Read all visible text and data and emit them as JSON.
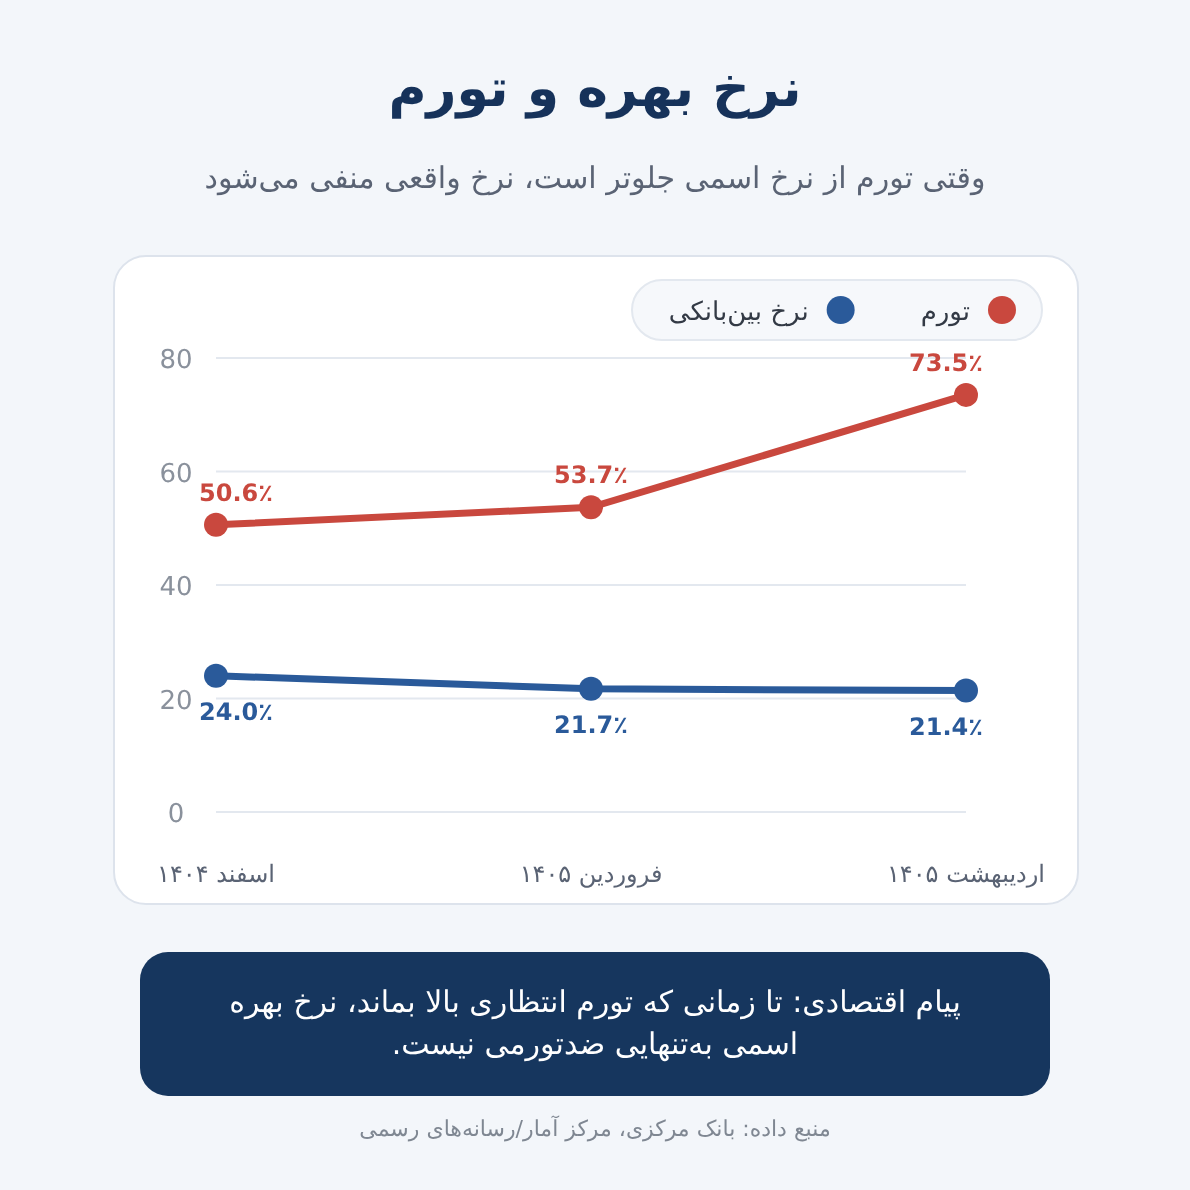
{
  "chart_data": {
    "type": "line",
    "title": "نرخ بهره و تورم",
    "subtitle": "وقتی تورم از نرخ اسمی جلوتر است، نرخ واقعی منفی می‌شود",
    "categories": [
      "اسفند ۱۴۰۴",
      "فروردین ۱۴۰۵",
      "اردیبهشت ۱۴۰۵"
    ],
    "series": [
      {
        "name": "تورم",
        "color": "#c9483e",
        "values": [
          50.6,
          53.7,
          73.5
        ],
        "value_labels": [
          "50.6٪",
          "53.7٪",
          "73.5٪"
        ]
      },
      {
        "name": "نرخ بین‌بانکی",
        "color": "#2a5a9a",
        "values": [
          24.0,
          21.7,
          21.4
        ],
        "value_labels": [
          "24.0٪",
          "21.7٪",
          "21.4٪"
        ]
      }
    ],
    "ylim": [
      0,
      80
    ],
    "yticks": [
      0,
      20,
      40,
      60,
      80
    ],
    "grid": "y",
    "legend": "top right",
    "marker": "circle",
    "line_style": "solid",
    "annotations": [
      "پیام اقتصادی: تا زمانی که تورم انتظاری بالا بماند، نرخ بهره اسمی به‌تنهایی ضدتورمی نیست.",
      "منبع داده: بانک مرکزی، مرکز آمار/رسانه‌های رسمی"
    ]
  }
}
